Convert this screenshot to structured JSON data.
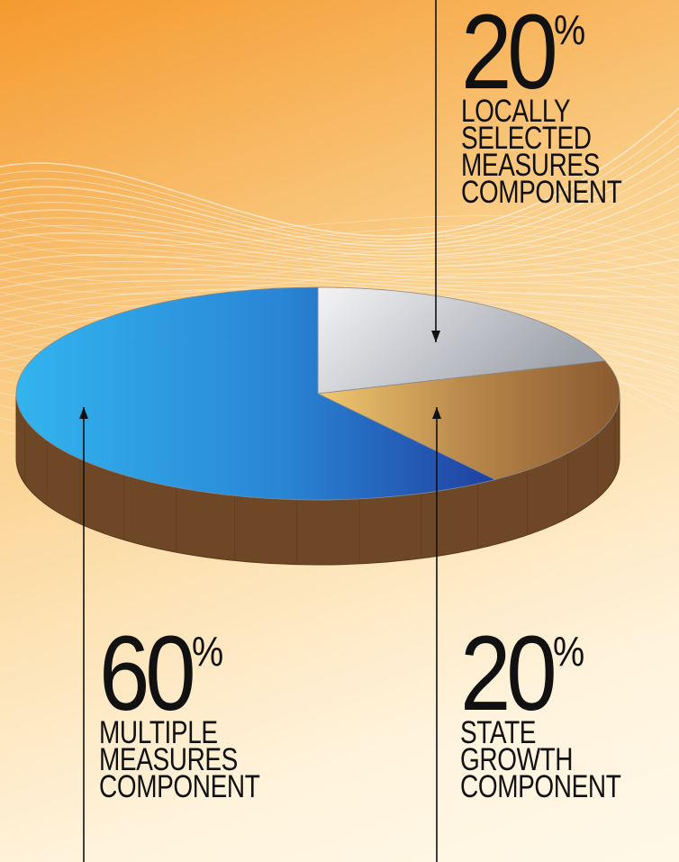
{
  "chart_data": {
    "type": "pie",
    "style": "3d",
    "slices": [
      {
        "name": "LOCALLY SELECTED MEASURES COMPONENT",
        "value": 20,
        "percent_label": "20",
        "label_lines": [
          "LOCALLY",
          "SELECTED",
          "MEASURES",
          "COMPONENT"
        ],
        "color": "#c9cbd0"
      },
      {
        "name": "STATE GROWTH COMPONENT",
        "value": 20,
        "percent_label": "20",
        "label_lines": [
          "STATE",
          "GROWTH",
          "COMPONENT"
        ],
        "color": "#b98a4e"
      },
      {
        "name": "MULTIPLE MEASURES COMPONENT",
        "value": 60,
        "percent_label": "60",
        "label_lines": [
          "MULTIPLE",
          "MEASURES",
          "COMPONENT"
        ],
        "color": "#2a7fd0"
      }
    ],
    "percent_sign": "%",
    "side_color": "#6e4726"
  }
}
